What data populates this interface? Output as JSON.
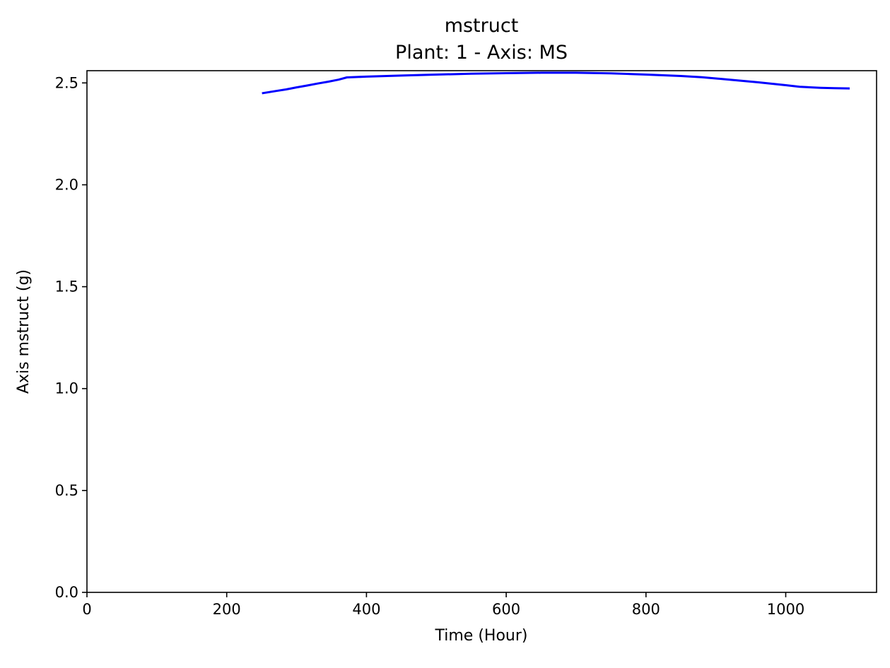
{
  "chart_data": {
    "type": "line",
    "title": "mstruct",
    "subtitle": "Plant: 1 - Axis: MS",
    "xlabel": "Time (Hour)",
    "ylabel": "Axis mstruct (g)",
    "xlim": [
      0,
      1130
    ],
    "ylim": [
      0,
      2.56
    ],
    "xticks": [
      0,
      200,
      400,
      600,
      800,
      1000
    ],
    "yticks": [
      0.0,
      0.5,
      1.0,
      1.5,
      2.0,
      2.5
    ],
    "xtick_labels": [
      "0",
      "200",
      "400",
      "600",
      "800",
      "1000"
    ],
    "ytick_labels": [
      "0.0",
      "0.5",
      "1.0",
      "1.5",
      "2.0",
      "2.5"
    ],
    "grid": false,
    "series": [
      {
        "color": "#0000ff",
        "x": [
          252,
          270,
          285,
          300,
          315,
          330,
          345,
          360,
          372,
          400,
          450,
          500,
          550,
          600,
          650,
          700,
          750,
          800,
          850,
          880,
          920,
          960,
          1000,
          1020,
          1050,
          1070,
          1090
        ],
        "y": [
          2.45,
          2.46,
          2.468,
          2.478,
          2.487,
          2.497,
          2.506,
          2.516,
          2.527,
          2.531,
          2.536,
          2.541,
          2.545,
          2.548,
          2.55,
          2.55,
          2.547,
          2.541,
          2.534,
          2.528,
          2.516,
          2.503,
          2.489,
          2.481,
          2.476,
          2.474,
          2.473
        ]
      }
    ]
  }
}
